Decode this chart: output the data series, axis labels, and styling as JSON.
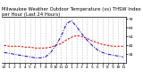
{
  "title": "Milwaukee Weather Outdoor Temperature (vs) THSW Index per Hour (Last 24 Hours)",
  "hours": [
    0,
    1,
    2,
    3,
    4,
    5,
    6,
    7,
    8,
    9,
    10,
    11,
    12,
    13,
    14,
    15,
    16,
    17,
    18,
    19,
    20,
    21,
    22,
    23
  ],
  "hour_labels": [
    "12",
    "1",
    "2",
    "3",
    "4",
    "5",
    "6",
    "7",
    "8",
    "9",
    "10",
    "11",
    "12",
    "1",
    "2",
    "3",
    "4",
    "5",
    "6",
    "7",
    "8",
    "9",
    "10",
    "11"
  ],
  "temp": [
    44,
    43,
    43,
    43,
    42,
    42,
    41,
    41,
    41,
    42,
    44,
    46,
    50,
    53,
    55,
    54,
    52,
    49,
    47,
    45,
    44,
    43,
    43,
    43
  ],
  "thsw": [
    36,
    35,
    34,
    33,
    32,
    31,
    30,
    30,
    31,
    36,
    44,
    54,
    68,
    72,
    65,
    57,
    50,
    44,
    39,
    36,
    34,
    33,
    32,
    31
  ],
  "temp_color": "#dd0000",
  "thsw_color": "#0000dd",
  "grid_color": "#999999",
  "background": "#ffffff",
  "ylim": [
    24,
    76
  ],
  "yticks": [
    34,
    44,
    54,
    64,
    74
  ],
  "ytick_labels": [
    "34",
    "44",
    "54",
    "64",
    "74"
  ],
  "title_fontsize": 3.8,
  "tick_fontsize": 3.2,
  "line_width": 0.7
}
